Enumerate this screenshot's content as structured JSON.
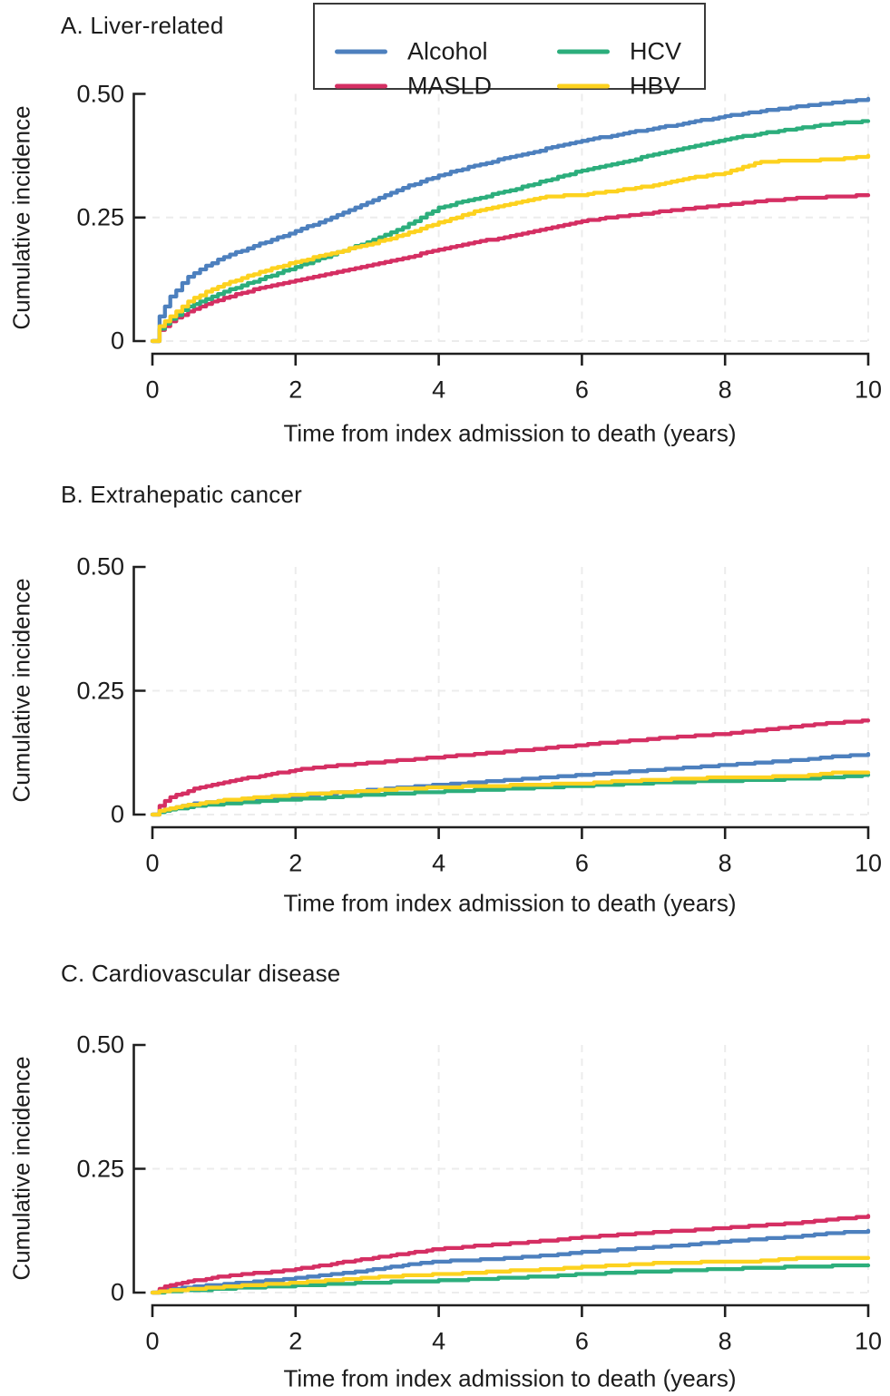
{
  "figure": {
    "xlabel": "Time from index admission to death (years)",
    "ylabel": "Cumulative incidence"
  },
  "colors": {
    "alcohol": "#4d80be",
    "masld": "#d52f63",
    "hcv": "#2cae7c",
    "hbv": "#fdd21f",
    "axis": "#1f1f1f",
    "grid": "#ececec"
  },
  "legend": {
    "position": "top",
    "entries": [
      {
        "label": "Alcohol",
        "color": "alcohol"
      },
      {
        "label": "MASLD",
        "color": "masld"
      },
      {
        "label": "HCV",
        "color": "hcv"
      },
      {
        "label": "HBV",
        "color": "hbv"
      }
    ]
  },
  "chart_data": [
    {
      "type": "line",
      "title": "A. Liver-related",
      "xlabel": "Time from index admission to death (years)",
      "ylabel": "Cumulative incidence",
      "xlim": [
        0,
        10
      ],
      "ylim": [
        0,
        0.5
      ],
      "x_ticks": [
        0,
        2,
        4,
        6,
        8,
        10
      ],
      "xtick_labels": [
        "0",
        "2",
        "4",
        "6",
        "8",
        "10"
      ],
      "y_ticks": [
        0.5,
        0.25,
        0
      ],
      "ytick_labels": [
        "0.50",
        "0.25",
        "0"
      ],
      "grid": "light-dashed",
      "x": [
        0,
        0.1,
        0.25,
        0.5,
        0.75,
        1,
        1.5,
        2,
        2.5,
        3,
        3.5,
        4,
        4.5,
        5,
        5.5,
        6,
        6.5,
        7,
        7.5,
        8,
        8.5,
        9,
        9.5,
        10
      ],
      "series": [
        {
          "name": "Alcohol",
          "color": "alcohol",
          "y": [
            0,
            0.05,
            0.09,
            0.13,
            0.152,
            0.17,
            0.197,
            0.222,
            0.25,
            0.28,
            0.31,
            0.335,
            0.355,
            0.372,
            0.389,
            0.405,
            0.418,
            0.43,
            0.442,
            0.455,
            0.465,
            0.474,
            0.482,
            0.49
          ]
        },
        {
          "name": "MASLD",
          "color": "masld",
          "y": [
            0,
            0.022,
            0.04,
            0.06,
            0.075,
            0.088,
            0.107,
            0.122,
            0.138,
            0.152,
            0.168,
            0.185,
            0.2,
            0.212,
            0.228,
            0.243,
            0.252,
            0.26,
            0.268,
            0.275,
            0.283,
            0.289,
            0.292,
            0.295
          ]
        },
        {
          "name": "HCV",
          "color": "hcv",
          "y": [
            0,
            0.025,
            0.045,
            0.07,
            0.085,
            0.1,
            0.125,
            0.15,
            0.175,
            0.2,
            0.23,
            0.27,
            0.288,
            0.305,
            0.325,
            0.345,
            0.36,
            0.377,
            0.393,
            0.408,
            0.42,
            0.43,
            0.44,
            0.445
          ]
        },
        {
          "name": "HBV",
          "color": "hbv",
          "y": [
            0,
            0.03,
            0.05,
            0.08,
            0.1,
            0.115,
            0.14,
            0.16,
            0.178,
            0.195,
            0.215,
            0.24,
            0.262,
            0.278,
            0.292,
            0.296,
            0.305,
            0.315,
            0.33,
            0.34,
            0.363,
            0.365,
            0.367,
            0.374
          ]
        }
      ]
    },
    {
      "type": "line",
      "title": "B. Extrahepatic cancer",
      "xlabel": "Time from index admission to death (years)",
      "ylabel": "Cumulative incidence",
      "xlim": [
        0,
        10
      ],
      "ylim": [
        0,
        0.5
      ],
      "x_ticks": [
        0,
        2,
        4,
        6,
        8,
        10
      ],
      "xtick_labels": [
        "0",
        "2",
        "4",
        "6",
        "8",
        "10"
      ],
      "y_ticks": [
        0.5,
        0.25,
        0
      ],
      "ytick_labels": [
        "0.50",
        "0.25",
        "0"
      ],
      "grid": "light-dashed",
      "x": [
        0,
        0.1,
        0.25,
        0.5,
        0.75,
        1,
        1.5,
        2,
        2.5,
        3,
        3.5,
        4,
        4.5,
        5,
        5.5,
        6,
        6.5,
        7,
        7.5,
        8,
        8.5,
        9,
        9.5,
        10
      ],
      "series": [
        {
          "name": "Alcohol",
          "color": "alcohol",
          "y": [
            0,
            0.008,
            0.013,
            0.02,
            0.024,
            0.028,
            0.033,
            0.038,
            0.043,
            0.049,
            0.055,
            0.06,
            0.065,
            0.07,
            0.075,
            0.08,
            0.085,
            0.09,
            0.095,
            0.1,
            0.105,
            0.11,
            0.117,
            0.122
          ]
        },
        {
          "name": "MASLD",
          "color": "masld",
          "y": [
            0,
            0.018,
            0.035,
            0.048,
            0.058,
            0.066,
            0.078,
            0.09,
            0.098,
            0.104,
            0.11,
            0.116,
            0.122,
            0.128,
            0.134,
            0.141,
            0.147,
            0.153,
            0.158,
            0.163,
            0.17,
            0.178,
            0.185,
            0.19
          ]
        },
        {
          "name": "HCV",
          "color": "hcv",
          "y": [
            0,
            0.006,
            0.01,
            0.015,
            0.019,
            0.022,
            0.027,
            0.031,
            0.035,
            0.04,
            0.043,
            0.046,
            0.049,
            0.052,
            0.055,
            0.058,
            0.061,
            0.064,
            0.066,
            0.068,
            0.07,
            0.072,
            0.075,
            0.08
          ]
        },
        {
          "name": "HBV",
          "color": "hbv",
          "y": [
            0,
            0.007,
            0.013,
            0.019,
            0.024,
            0.029,
            0.035,
            0.04,
            0.044,
            0.048,
            0.052,
            0.055,
            0.057,
            0.059,
            0.061,
            0.063,
            0.067,
            0.07,
            0.073,
            0.075,
            0.076,
            0.077,
            0.084,
            0.086
          ]
        }
      ]
    },
    {
      "type": "line",
      "title": "C. Cardiovascular disease",
      "xlabel": "Time from index admission to death (years)",
      "ylabel": "Cumulative incidence",
      "xlim": [
        0,
        10
      ],
      "ylim": [
        0,
        0.5
      ],
      "x_ticks": [
        0,
        2,
        4,
        6,
        8,
        10
      ],
      "xtick_labels": [
        "0",
        "2",
        "4",
        "6",
        "8",
        "10"
      ],
      "y_ticks": [
        0.5,
        0.25,
        0
      ],
      "ytick_labels": [
        "0.50",
        "0.25",
        "0"
      ],
      "grid": "light-dashed",
      "x": [
        0,
        0.1,
        0.25,
        0.5,
        0.75,
        1,
        1.5,
        2,
        2.5,
        3,
        3.5,
        4,
        4.5,
        5,
        5.5,
        6,
        6.5,
        7,
        7.5,
        8,
        8.5,
        9,
        9.5,
        10
      ],
      "series": [
        {
          "name": "Alcohol",
          "color": "alcohol",
          "y": [
            0,
            0.004,
            0.007,
            0.011,
            0.014,
            0.017,
            0.023,
            0.029,
            0.037,
            0.045,
            0.055,
            0.063,
            0.066,
            0.07,
            0.075,
            0.082,
            0.087,
            0.092,
            0.097,
            0.103,
            0.108,
            0.113,
            0.12,
            0.124
          ]
        },
        {
          "name": "MASLD",
          "color": "masld",
          "y": [
            0,
            0.008,
            0.015,
            0.022,
            0.028,
            0.033,
            0.04,
            0.047,
            0.058,
            0.068,
            0.078,
            0.088,
            0.094,
            0.099,
            0.105,
            0.112,
            0.117,
            0.122,
            0.126,
            0.131,
            0.136,
            0.141,
            0.148,
            0.154
          ]
        },
        {
          "name": "HCV",
          "color": "hcv",
          "y": [
            0,
            0.001,
            0.003,
            0.005,
            0.006,
            0.008,
            0.011,
            0.014,
            0.017,
            0.02,
            0.022,
            0.024,
            0.027,
            0.03,
            0.033,
            0.037,
            0.04,
            0.043,
            0.045,
            0.048,
            0.05,
            0.052,
            0.054,
            0.055
          ]
        },
        {
          "name": "HBV",
          "color": "hbv",
          "y": [
            0,
            0.002,
            0.004,
            0.007,
            0.009,
            0.012,
            0.016,
            0.02,
            0.025,
            0.03,
            0.034,
            0.037,
            0.04,
            0.044,
            0.047,
            0.052,
            0.055,
            0.059,
            0.061,
            0.062,
            0.064,
            0.069,
            0.07,
            0.071
          ]
        }
      ]
    }
  ]
}
